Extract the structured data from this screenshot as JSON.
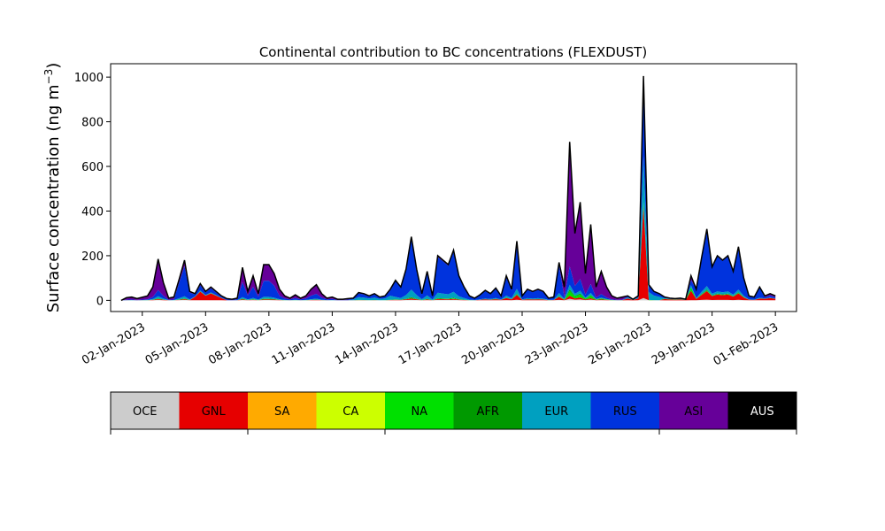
{
  "chart_data": {
    "type": "area",
    "title": "Continental contribution to BC concentrations (FLEXDUST)",
    "xlabel": "",
    "ylabel": "Surface concentration (ng m",
    "ylabel_superscript": "−3",
    "ylabel_close": ")",
    "x_start": "2023-01-01",
    "x_end": "2023-02-01",
    "xlim": [
      "2022-12-31T12:00",
      "2023-02-02"
    ],
    "ylim": [
      -50,
      1060
    ],
    "y_ticks": [
      0,
      200,
      400,
      600,
      800,
      1000
    ],
    "x_ticks": [
      "02-Jan-2023",
      "05-Jan-2023",
      "08-Jan-2023",
      "11-Jan-2023",
      "14-Jan-2023",
      "17-Jan-2023",
      "20-Jan-2023",
      "23-Jan-2023",
      "26-Jan-2023",
      "29-Jan-2023",
      "01-Feb-2023"
    ],
    "legend_placement": "below chart",
    "series": [
      {
        "name": "OCE",
        "color": "#cccccc"
      },
      {
        "name": "GNL",
        "color": "#e60000"
      },
      {
        "name": "SA",
        "color": "#ffaa00"
      },
      {
        "name": "CA",
        "color": "#ccff00"
      },
      {
        "name": "NA",
        "color": "#00e000"
      },
      {
        "name": "AFR",
        "color": "#009900"
      },
      {
        "name": "EUR",
        "color": "#00a0c0"
      },
      {
        "name": "RUS",
        "color": "#0033dd"
      },
      {
        "name": "ASI",
        "color": "#660099"
      },
      {
        "name": "AUS",
        "color": "#000000"
      }
    ],
    "total_points": [
      [
        "2023-01-01T00:00",
        0
      ],
      [
        "2023-01-01T06:00",
        12
      ],
      [
        "2023-01-01T12:00",
        15
      ],
      [
        "2023-01-01T18:00",
        8
      ],
      [
        "2023-01-02T06:00",
        20
      ],
      [
        "2023-01-02T12:00",
        60
      ],
      [
        "2023-01-02T18:00",
        185
      ],
      [
        "2023-01-03T00:00",
        80
      ],
      [
        "2023-01-03T06:00",
        10
      ],
      [
        "2023-01-03T12:00",
        15
      ],
      [
        "2023-01-03T18:00",
        95
      ],
      [
        "2023-01-04T00:00",
        180
      ],
      [
        "2023-01-04T06:00",
        40
      ],
      [
        "2023-01-04T12:00",
        30
      ],
      [
        "2023-01-04T18:00",
        75
      ],
      [
        "2023-01-05T00:00",
        40
      ],
      [
        "2023-01-05T06:00",
        60
      ],
      [
        "2023-01-05T12:00",
        40
      ],
      [
        "2023-01-05T18:00",
        20
      ],
      [
        "2023-01-06T00:00",
        8
      ],
      [
        "2023-01-06T06:00",
        5
      ],
      [
        "2023-01-06T12:00",
        10
      ],
      [
        "2023-01-06T18:00",
        148
      ],
      [
        "2023-01-07T00:00",
        40
      ],
      [
        "2023-01-07T06:00",
        110
      ],
      [
        "2023-01-07T12:00",
        30
      ],
      [
        "2023-01-07T18:00",
        160
      ],
      [
        "2023-01-08T00:00",
        160
      ],
      [
        "2023-01-08T06:00",
        120
      ],
      [
        "2023-01-08T12:00",
        50
      ],
      [
        "2023-01-08T18:00",
        20
      ],
      [
        "2023-01-09T00:00",
        10
      ],
      [
        "2023-01-09T06:00",
        25
      ],
      [
        "2023-01-09T12:00",
        10
      ],
      [
        "2023-01-09T18:00",
        20
      ],
      [
        "2023-01-10T00:00",
        50
      ],
      [
        "2023-01-10T06:00",
        70
      ],
      [
        "2023-01-10T12:00",
        30
      ],
      [
        "2023-01-10T18:00",
        10
      ],
      [
        "2023-01-11T00:00",
        15
      ],
      [
        "2023-01-11T06:00",
        5
      ],
      [
        "2023-01-11T12:00",
        5
      ],
      [
        "2023-01-11T18:00",
        8
      ],
      [
        "2023-01-12T00:00",
        10
      ],
      [
        "2023-01-12T06:00",
        35
      ],
      [
        "2023-01-12T12:00",
        30
      ],
      [
        "2023-01-12T18:00",
        20
      ],
      [
        "2023-01-13T00:00",
        30
      ],
      [
        "2023-01-13T06:00",
        15
      ],
      [
        "2023-01-13T12:00",
        20
      ],
      [
        "2023-01-13T18:00",
        50
      ],
      [
        "2023-01-14T00:00",
        90
      ],
      [
        "2023-01-14T06:00",
        60
      ],
      [
        "2023-01-14T12:00",
        140
      ],
      [
        "2023-01-14T18:00",
        285
      ],
      [
        "2023-01-15T00:00",
        140
      ],
      [
        "2023-01-15T06:00",
        30
      ],
      [
        "2023-01-15T12:00",
        130
      ],
      [
        "2023-01-15T18:00",
        20
      ],
      [
        "2023-01-16T00:00",
        200
      ],
      [
        "2023-01-16T06:00",
        180
      ],
      [
        "2023-01-16T12:00",
        160
      ],
      [
        "2023-01-16T18:00",
        225
      ],
      [
        "2023-01-17T00:00",
        110
      ],
      [
        "2023-01-17T06:00",
        60
      ],
      [
        "2023-01-17T12:00",
        20
      ],
      [
        "2023-01-17T18:00",
        10
      ],
      [
        "2023-01-18T00:00",
        25
      ],
      [
        "2023-01-18T06:00",
        45
      ],
      [
        "2023-01-18T12:00",
        30
      ],
      [
        "2023-01-18T18:00",
        55
      ],
      [
        "2023-01-19T00:00",
        20
      ],
      [
        "2023-01-19T06:00",
        110
      ],
      [
        "2023-01-19T12:00",
        50
      ],
      [
        "2023-01-19T18:00",
        265
      ],
      [
        "2023-01-20T00:00",
        20
      ],
      [
        "2023-01-20T06:00",
        50
      ],
      [
        "2023-01-20T12:00",
        40
      ],
      [
        "2023-01-20T18:00",
        50
      ],
      [
        "2023-01-21T00:00",
        40
      ],
      [
        "2023-01-21T06:00",
        10
      ],
      [
        "2023-01-21T12:00",
        15
      ],
      [
        "2023-01-21T18:00",
        170
      ],
      [
        "2023-01-22T00:00",
        60
      ],
      [
        "2023-01-22T06:00",
        710
      ],
      [
        "2023-01-22T12:00",
        300
      ],
      [
        "2023-01-22T18:00",
        440
      ],
      [
        "2023-01-23T00:00",
        120
      ],
      [
        "2023-01-23T06:00",
        340
      ],
      [
        "2023-01-23T12:00",
        60
      ],
      [
        "2023-01-23T18:00",
        130
      ],
      [
        "2023-01-24T00:00",
        60
      ],
      [
        "2023-01-24T06:00",
        20
      ],
      [
        "2023-01-24T12:00",
        10
      ],
      [
        "2023-01-24T18:00",
        15
      ],
      [
        "2023-01-25T00:00",
        20
      ],
      [
        "2023-01-25T06:00",
        5
      ],
      [
        "2023-01-25T12:00",
        20
      ],
      [
        "2023-01-25T18:00",
        1005
      ],
      [
        "2023-01-26T00:00",
        70
      ],
      [
        "2023-01-26T06:00",
        40
      ],
      [
        "2023-01-26T12:00",
        30
      ],
      [
        "2023-01-26T18:00",
        15
      ],
      [
        "2023-01-27T00:00",
        10
      ],
      [
        "2023-01-27T06:00",
        8
      ],
      [
        "2023-01-27T12:00",
        10
      ],
      [
        "2023-01-27T18:00",
        5
      ],
      [
        "2023-01-28T00:00",
        110
      ],
      [
        "2023-01-28T06:00",
        50
      ],
      [
        "2023-01-28T12:00",
        190
      ],
      [
        "2023-01-28T18:00",
        320
      ],
      [
        "2023-01-29T00:00",
        150
      ],
      [
        "2023-01-29T06:00",
        200
      ],
      [
        "2023-01-29T12:00",
        180
      ],
      [
        "2023-01-29T18:00",
        200
      ],
      [
        "2023-01-30T00:00",
        130
      ],
      [
        "2023-01-30T06:00",
        240
      ],
      [
        "2023-01-30T12:00",
        100
      ],
      [
        "2023-01-30T18:00",
        20
      ],
      [
        "2023-01-31T00:00",
        15
      ],
      [
        "2023-01-31T06:00",
        60
      ],
      [
        "2023-01-31T12:00",
        20
      ],
      [
        "2023-01-31T18:00",
        30
      ],
      [
        "2023-02-01T00:00",
        20
      ]
    ]
  }
}
